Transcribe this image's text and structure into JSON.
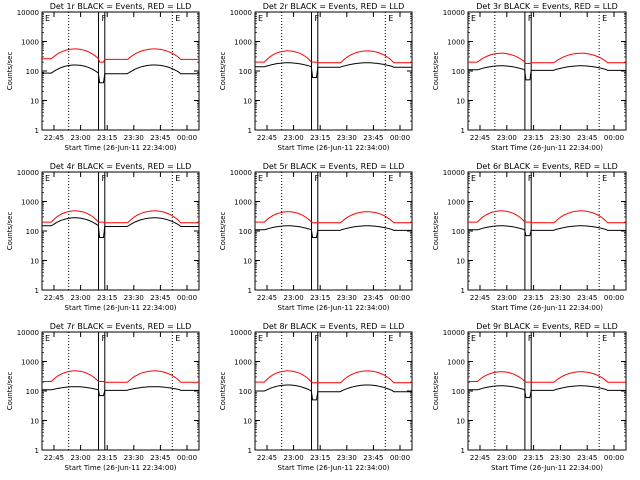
{
  "chart_data": {
    "type": "line",
    "panels": [
      {
        "title": "Det 1r BLACK = Events, RED = LLD",
        "events_base": 85,
        "lld_base": 260,
        "peak_black": 160,
        "peak_red": 560,
        "bottom_black": 40,
        "bottom_red": 200
      },
      {
        "title": "Det 2r BLACK = Events, RED = LLD",
        "events_base": 140,
        "lld_base": 200,
        "peak_black": 190,
        "peak_red": 480,
        "bottom_black": 60,
        "bottom_red": 200
      },
      {
        "title": "Det 3r BLACK = Events, RED = LLD",
        "events_base": 110,
        "lld_base": 200,
        "peak_black": 150,
        "peak_red": 400,
        "bottom_black": 50,
        "bottom_red": 180
      },
      {
        "title": "Det 4r BLACK = Events, RED = LLD",
        "events_base": 150,
        "lld_base": 200,
        "peak_black": 280,
        "peak_red": 480,
        "bottom_black": 60,
        "bottom_red": 200
      },
      {
        "title": "Det 5r BLACK = Events, RED = LLD",
        "events_base": 110,
        "lld_base": 200,
        "peak_black": 150,
        "peak_red": 450,
        "bottom_black": 60,
        "bottom_red": 190
      },
      {
        "title": "Det 6r BLACK = Events, RED = LLD",
        "events_base": 110,
        "lld_base": 200,
        "peak_black": 150,
        "peak_red": 480,
        "bottom_black": 70,
        "bottom_red": 200
      },
      {
        "title": "Det 7r BLACK = Events, RED = LLD",
        "events_base": 110,
        "lld_base": 210,
        "peak_black": 140,
        "peak_red": 480,
        "bottom_black": 70,
        "bottom_red": 210
      },
      {
        "title": "Det 8r BLACK = Events, RED = LLD",
        "events_base": 100,
        "lld_base": 200,
        "peak_black": 160,
        "peak_red": 480,
        "bottom_black": 50,
        "bottom_red": 190
      },
      {
        "title": "Det 9r BLACK = Events, RED = LLD",
        "events_base": 110,
        "lld_base": 210,
        "peak_black": 150,
        "peak_red": 450,
        "bottom_black": 60,
        "bottom_red": 200
      }
    ],
    "ylabel": "Counts/sec",
    "xlabel": "Start Time (26-Jun-11 22:34:00)",
    "xticks": [
      "22:45",
      "23:00",
      "23:15",
      "23:30",
      "23:45",
      "00:00"
    ],
    "yticks": [
      "1",
      "10",
      "100",
      "1000",
      "10000"
    ],
    "ylim": [
      1,
      10000
    ],
    "yscale": "log",
    "series": [
      {
        "name": "BLACK = Events",
        "color": "#000000"
      },
      {
        "name": "RED = LLD",
        "color": "#ff0000"
      }
    ],
    "marker_labels": [
      "E",
      "F",
      "E"
    ]
  }
}
